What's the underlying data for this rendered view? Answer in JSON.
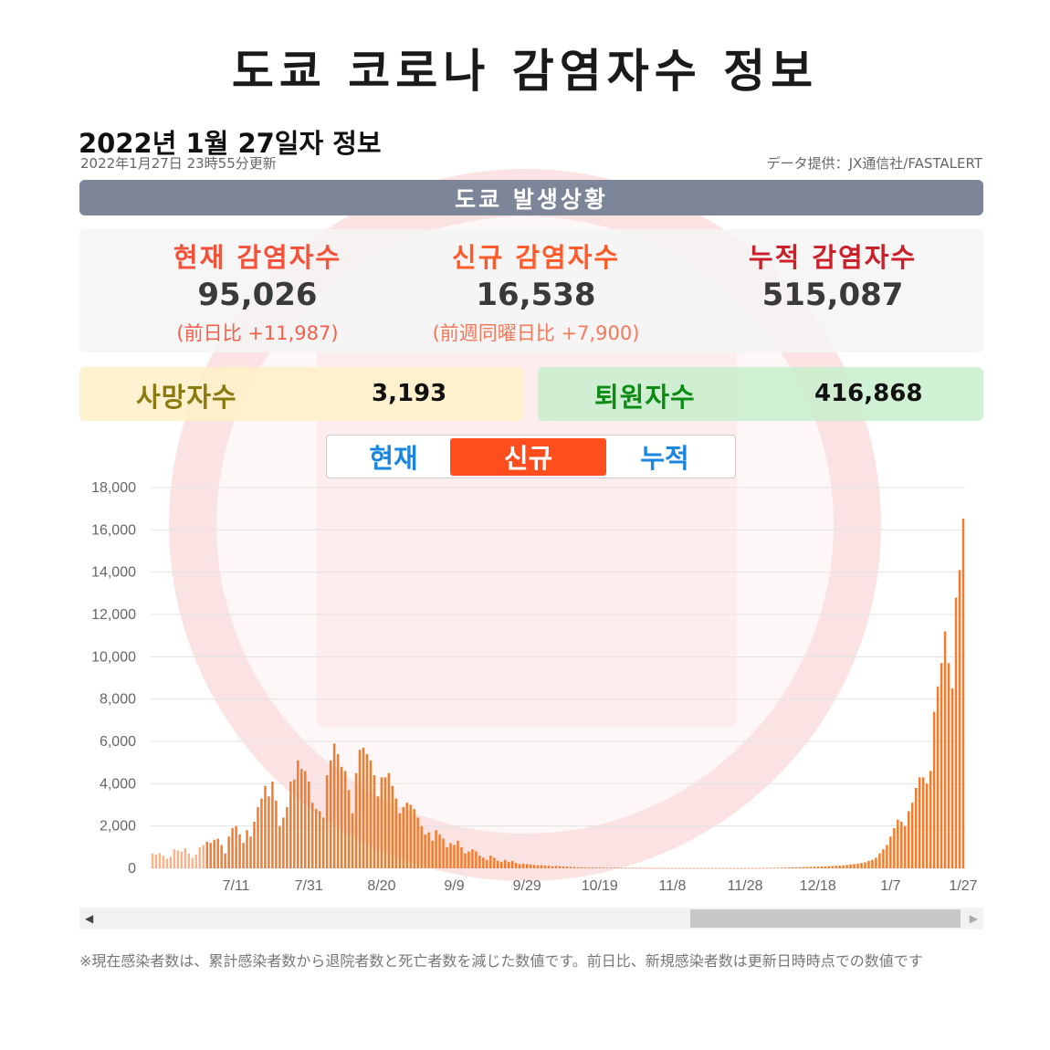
{
  "page": {
    "title": "도쿄 코로나 감염자수 정보",
    "date_title": "2022년 1월 27일자 정보",
    "update_time": "2022年1月27日 23時55分更新",
    "source": "データ提供：JX通信社/FASTALERT",
    "header": "도쿄 발생상황"
  },
  "stats": {
    "current": {
      "label": "현재 감염자수",
      "value": "95,026",
      "sub": "(前日比 +11,987)"
    },
    "new": {
      "label": "신규 감염자수",
      "value": "16,538",
      "sub": "(前週同曜日比 +7,900)"
    },
    "total": {
      "label": "누적 감염자수",
      "value": "515,087"
    },
    "deaths": {
      "label": "사망자수",
      "value": "3,193"
    },
    "recovered": {
      "label": "퇴원자수",
      "value": "416,868"
    }
  },
  "tabs": {
    "current": "현재",
    "new": "신규",
    "total": "누적",
    "active": "new"
  },
  "scrollbar": {
    "left_arrow": "◀",
    "right_arrow": "▶"
  },
  "footnote": "※現在感染者数は、累計感染者数から退院者数と死亡者数を減じた数値です。前日比、新規感染者数は更新日時時点での数値です",
  "colors": {
    "bar": "#f47a2e",
    "bar_faded": "#f6b58a",
    "grid": "#e3e3e3"
  },
  "chart_data": {
    "type": "bar",
    "ylim": [
      0,
      18000
    ],
    "yticks": [
      "0",
      "2,000",
      "4,000",
      "6,000",
      "8,000",
      "10,000",
      "12,000",
      "14,000",
      "16,000",
      "18,000"
    ],
    "xticks": [
      "7/11",
      "7/31",
      "8/20",
      "9/9",
      "9/29",
      "10/19",
      "11/8",
      "11/28",
      "12/18",
      "1/7",
      "1/27"
    ],
    "series": [
      {
        "values": [
          700,
          650,
          720,
          600,
          450,
          550,
          900,
          850,
          800,
          950,
          700,
          500,
          650,
          1000,
          1100,
          1250,
          1200,
          1350,
          1400,
          1100,
          700,
          1500,
          1900,
          2000,
          1600,
          1200,
          1800,
          1500,
          2200,
          2900,
          3300,
          3900,
          3400,
          4100,
          3200,
          2000,
          2400,
          2900,
          4100,
          4200,
          5100,
          4700,
          4600,
          4100,
          3100,
          2800,
          2700,
          2400,
          4400,
          5100,
          5900,
          5400,
          4800,
          4600,
          3700,
          2600,
          4500,
          5600,
          5700,
          5400,
          5100,
          4400,
          3400,
          4300,
          4300,
          4500,
          3900,
          3300,
          2600,
          2900,
          3100,
          3000,
          2800,
          2400,
          2000,
          1600,
          1700,
          1300,
          1800,
          1600,
          1400,
          1000,
          1200,
          1100,
          1300,
          1000,
          700,
          800,
          900,
          800,
          600,
          500,
          400,
          600,
          500,
          350,
          300,
          400,
          300,
          350,
          250,
          200,
          220,
          200,
          180,
          160,
          140,
          150,
          130,
          120,
          100,
          110,
          100,
          90,
          80,
          70,
          60,
          50,
          50,
          45,
          40,
          40,
          38,
          35,
          30,
          30,
          28,
          25,
          25,
          22,
          20,
          20,
          20,
          18,
          15,
          15,
          15,
          14,
          13,
          12,
          12,
          12,
          12,
          11,
          10,
          10,
          10,
          10,
          10,
          10,
          10,
          10,
          9,
          9,
          9,
          9,
          9,
          8,
          8,
          8,
          8,
          8,
          8,
          8,
          8,
          10,
          12,
          15,
          15,
          18,
          20,
          22,
          25,
          30,
          35,
          40,
          45,
          50,
          55,
          60,
          64,
          70,
          75,
          80,
          90,
          95,
          100,
          110,
          120,
          130,
          140,
          160,
          180,
          200,
          220,
          250,
          280,
          350,
          400,
          500,
          700,
          900,
          1100,
          1500,
          1900,
          2300,
          2200,
          2000,
          2700,
          3100,
          3800,
          4300,
          4300,
          4000,
          4600,
          7400,
          8600,
          9700,
          11200,
          9700,
          8500,
          12800,
          14100,
          16538
        ]
      }
    ]
  }
}
